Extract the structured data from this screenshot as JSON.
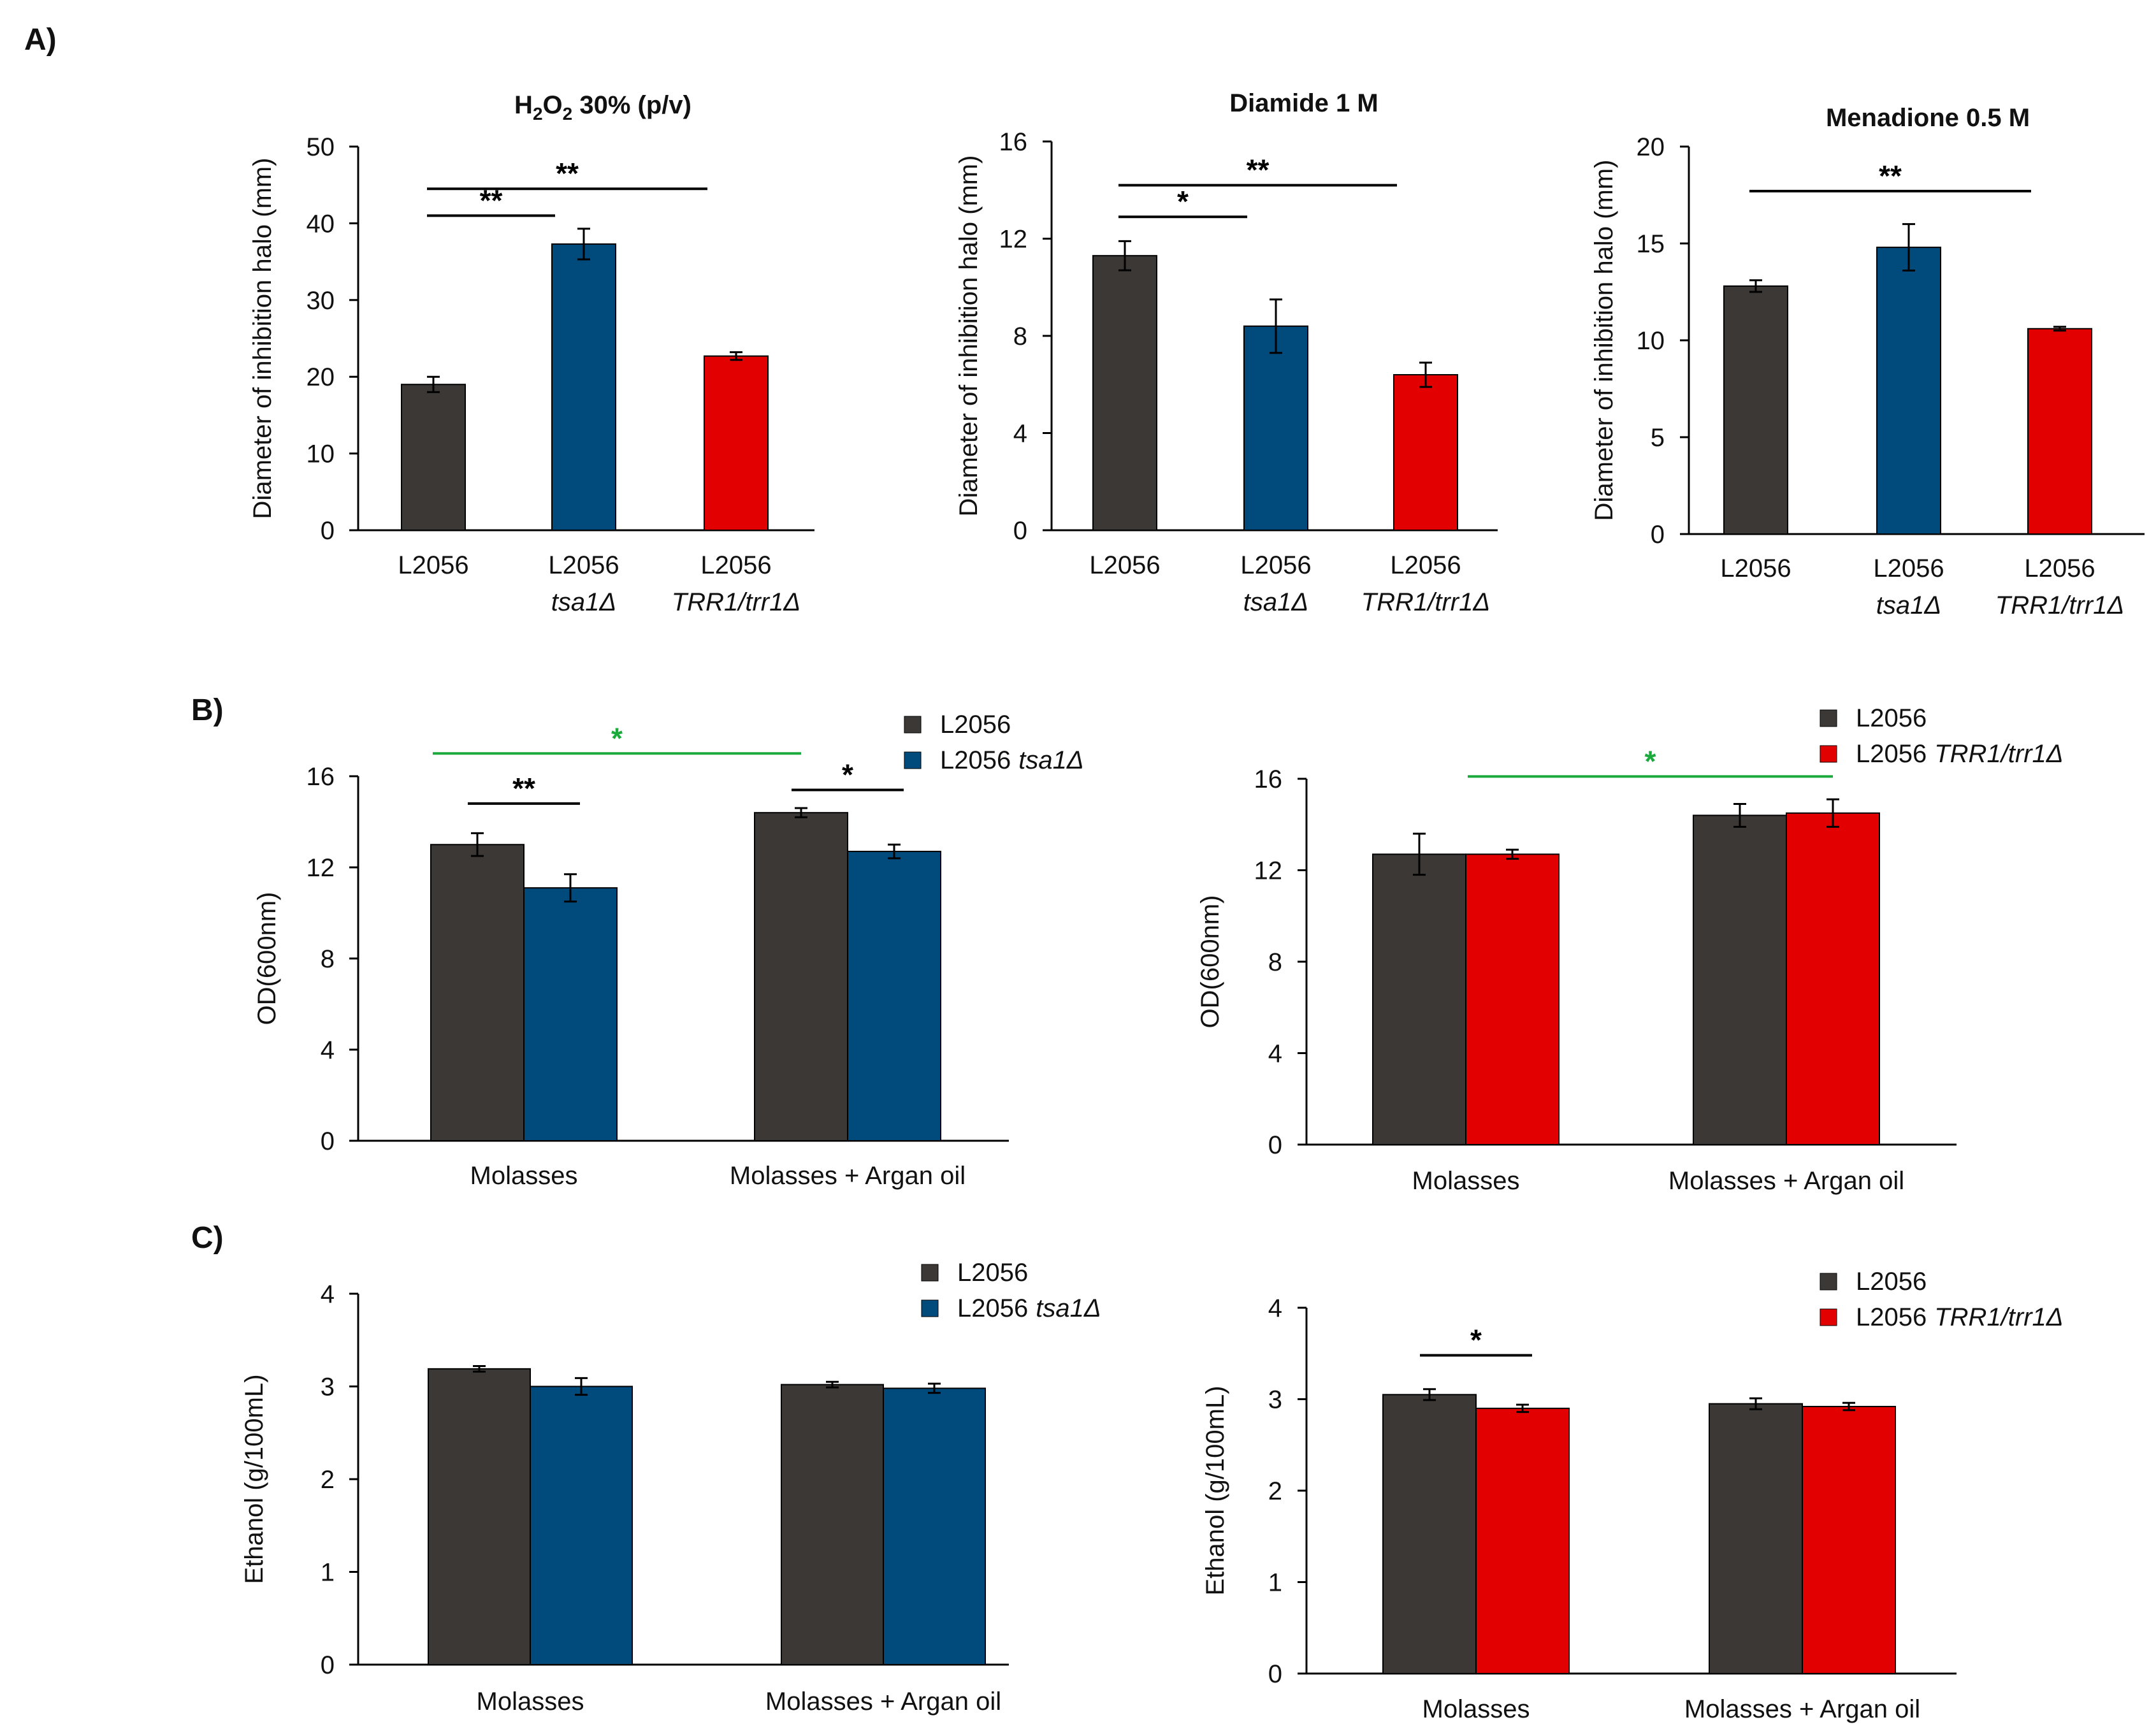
{
  "figure": {
    "panel_labels": [
      "A)",
      "B)",
      "C)"
    ]
  },
  "colors": {
    "wild_type": "#3b3836",
    "tsa1": "#004a7c",
    "trr1": "#e30000",
    "significance_green": "#1aaa3c",
    "significance_black": "#000000",
    "axis": "#000000"
  },
  "chart_data": [
    {
      "id": "h2o2",
      "type": "bar",
      "title": "H2O2 30% (p/v)",
      "title_rich": {
        "main": "H",
        "sub1": "2",
        "mid": "O",
        "sub2": "2",
        "tail": " 30% (p/v)"
      },
      "ylabel": "Diameter of inhibition halo (mm)",
      "xlabel": "",
      "ylim": [
        0,
        50
      ],
      "yticks": [
        0,
        10,
        20,
        30,
        40,
        50
      ],
      "grid": false,
      "categories": [
        {
          "line1": "L2056",
          "line2": ""
        },
        {
          "line1": "L2056",
          "line2": "tsa1Δ"
        },
        {
          "line1": "L2056",
          "line2": "TRR1/trr1Δ"
        }
      ],
      "values": [
        19,
        37.3,
        22.7
      ],
      "errors": [
        1.0,
        2.0,
        0.5
      ],
      "bar_colors": [
        "wild_type",
        "tsa1",
        "trr1"
      ],
      "significance": [
        {
          "from": 0,
          "to": 1,
          "label": "**",
          "y": 41,
          "color": "significance_black"
        },
        {
          "from": 0,
          "to": 2,
          "label": "**",
          "y": 44.5,
          "color": "significance_black"
        }
      ]
    },
    {
      "id": "diamide",
      "type": "bar",
      "title": "Diamide 1 M",
      "ylabel": "Diameter of inhibition halo (mm)",
      "xlabel": "",
      "ylim": [
        0,
        16
      ],
      "yticks": [
        0,
        4,
        8,
        12,
        16
      ],
      "grid": false,
      "categories": [
        {
          "line1": "L2056",
          "line2": ""
        },
        {
          "line1": "L2056",
          "line2": "tsa1Δ"
        },
        {
          "line1": "L2056",
          "line2": "TRR1/trr1Δ"
        }
      ],
      "values": [
        11.3,
        8.4,
        6.4
      ],
      "errors": [
        0.6,
        1.1,
        0.5
      ],
      "bar_colors": [
        "wild_type",
        "tsa1",
        "trr1"
      ],
      "significance": [
        {
          "from": 0,
          "to": 1,
          "label": "*",
          "y": 12.9,
          "color": "significance_black"
        },
        {
          "from": 0,
          "to": 2,
          "label": "**",
          "y": 14.2,
          "color": "significance_black"
        }
      ]
    },
    {
      "id": "menadione",
      "type": "bar",
      "title": "Menadione 0.5 M",
      "ylabel": "Diameter of inhibition halo (mm)",
      "xlabel": "",
      "ylim": [
        0,
        20
      ],
      "yticks": [
        0,
        5,
        10,
        15,
        20
      ],
      "grid": false,
      "categories": [
        {
          "line1": "L2056",
          "line2": ""
        },
        {
          "line1": "L2056",
          "line2": "tsa1Δ"
        },
        {
          "line1": "L2056",
          "line2": "TRR1/trr1Δ"
        }
      ],
      "values": [
        12.8,
        14.8,
        10.6
      ],
      "errors": [
        0.3,
        1.2,
        0.1
      ],
      "bar_colors": [
        "wild_type",
        "tsa1",
        "trr1"
      ],
      "significance": [
        {
          "from": 0,
          "to": 2,
          "label": "**",
          "y": 17.7,
          "color": "significance_black"
        }
      ]
    },
    {
      "id": "od_tsa1",
      "type": "bar",
      "title": "",
      "ylabel": "OD(600nm)",
      "xlabel": "",
      "ylim": [
        0,
        16
      ],
      "yticks": [
        0,
        4,
        8,
        12,
        16
      ],
      "grid": false,
      "categories": [
        "Molasses",
        "Molasses + Argan oil"
      ],
      "series": [
        {
          "name": "L2056",
          "name_italic": "",
          "color": "wild_type",
          "values": [
            13.0,
            14.4
          ],
          "errors": [
            0.5,
            0.2
          ]
        },
        {
          "name": "L2056",
          "name_italic": "tsa1Δ",
          "color": "tsa1",
          "values": [
            11.1,
            12.7
          ],
          "errors": [
            0.6,
            0.3
          ]
        }
      ],
      "legend": "top-right",
      "significance": [
        {
          "group_from": 0,
          "series_from": 0,
          "group_to": 0,
          "series_to": 1,
          "label": "**",
          "y": 14.8,
          "color": "significance_black"
        },
        {
          "group_from": 1,
          "series_from": 0,
          "group_to": 1,
          "series_to": 1,
          "label": "*",
          "y": 15.4,
          "color": "significance_black"
        },
        {
          "group_from": 0,
          "series_from": 0,
          "group_to": 1,
          "series_to": 0,
          "label": "*",
          "y": 17,
          "color": "significance_green"
        }
      ]
    },
    {
      "id": "od_trr1",
      "type": "bar",
      "title": "",
      "ylabel": "OD(600nm)",
      "xlabel": "",
      "ylim": [
        0,
        16
      ],
      "yticks": [
        0,
        4,
        8,
        12,
        16
      ],
      "grid": false,
      "categories": [
        "Molasses",
        "Molasses + Argan oil"
      ],
      "series": [
        {
          "name": "L2056",
          "name_italic": "",
          "color": "wild_type",
          "values": [
            12.7,
            14.4
          ],
          "errors": [
            0.9,
            0.5
          ]
        },
        {
          "name": "L2056",
          "name_italic": "TRR1/trr1Δ",
          "color": "trr1",
          "values": [
            12.7,
            14.5
          ],
          "errors": [
            0.2,
            0.6
          ]
        }
      ],
      "legend": "top-right",
      "significance": [
        {
          "group_from": 0,
          "series_from": 1,
          "group_to": 1,
          "series_to": 1,
          "label": "*",
          "y": 16.1,
          "color": "significance_green"
        }
      ]
    },
    {
      "id": "ethanol_tsa1",
      "type": "bar",
      "title": "",
      "ylabel": "Ethanol (g/100mL)",
      "xlabel": "",
      "ylim": [
        0,
        4
      ],
      "yticks": [
        0,
        1,
        2,
        3,
        4
      ],
      "grid": false,
      "categories": [
        "Molasses",
        "Molasses + Argan oil"
      ],
      "series": [
        {
          "name": "L2056",
          "name_italic": "",
          "color": "wild_type",
          "values": [
            3.19,
            3.02
          ],
          "errors": [
            0.03,
            0.03
          ]
        },
        {
          "name": "L2056",
          "name_italic": "tsa1Δ",
          "color": "tsa1",
          "values": [
            3.0,
            2.98
          ],
          "errors": [
            0.09,
            0.05
          ]
        }
      ],
      "legend": "top-right",
      "significance": []
    },
    {
      "id": "ethanol_trr1",
      "type": "bar",
      "title": "",
      "ylabel": "Ethanol (g/100mL)",
      "xlabel": "",
      "ylim": [
        0,
        4
      ],
      "yticks": [
        0,
        1,
        2,
        3,
        4
      ],
      "grid": false,
      "categories": [
        "Molasses",
        "Molasses + Argan oil"
      ],
      "series": [
        {
          "name": "L2056",
          "name_italic": "",
          "color": "wild_type",
          "values": [
            3.05,
            2.95
          ],
          "errors": [
            0.06,
            0.06
          ]
        },
        {
          "name": "L2056",
          "name_italic": "TRR1/trr1Δ",
          "color": "trr1",
          "values": [
            2.9,
            2.92
          ],
          "errors": [
            0.04,
            0.04
          ]
        }
      ],
      "legend": "top-right",
      "significance": [
        {
          "group_from": 0,
          "series_from": 0,
          "group_to": 0,
          "series_to": 1,
          "label": "*",
          "y": 3.48,
          "color": "significance_black"
        }
      ]
    }
  ]
}
